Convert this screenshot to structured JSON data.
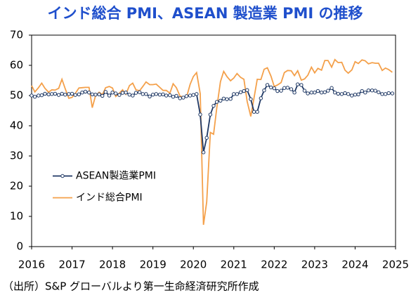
{
  "chart_data": {
    "type": "line",
    "title": "インド総合 PMI、ASEAN 製造業 PMI の推移",
    "source": "（出所）S&P グローバルより第一生命経済研究所作成",
    "xlim": [
      2016,
      2025
    ],
    "xticks": [
      2016,
      2017,
      2018,
      2019,
      2020,
      2021,
      2022,
      2023,
      2024,
      2025
    ],
    "ylim": [
      0,
      70
    ],
    "yticks": [
      0,
      10,
      20,
      30,
      40,
      50,
      60,
      70
    ],
    "legend": "center left",
    "x": [
      2016,
      2016.08,
      2016.17,
      2016.25,
      2016.33,
      2016.42,
      2016.5,
      2016.58,
      2016.67,
      2016.75,
      2016.83,
      2016.92,
      2017,
      2017.08,
      2017.17,
      2017.25,
      2017.33,
      2017.42,
      2017.5,
      2017.58,
      2017.67,
      2017.75,
      2017.83,
      2017.92,
      2018,
      2018.08,
      2018.17,
      2018.25,
      2018.33,
      2018.42,
      2018.5,
      2018.58,
      2018.67,
      2018.75,
      2018.83,
      2018.92,
      2019,
      2019.08,
      2019.17,
      2019.25,
      2019.33,
      2019.42,
      2019.5,
      2019.58,
      2019.67,
      2019.75,
      2019.83,
      2019.92,
      2020,
      2020.08,
      2020.17,
      2020.25,
      2020.33,
      2020.42,
      2020.5,
      2020.58,
      2020.67,
      2020.75,
      2020.83,
      2020.92,
      2021,
      2021.08,
      2021.17,
      2021.25,
      2021.33,
      2021.42,
      2021.5,
      2021.58,
      2021.67,
      2021.75,
      2021.83,
      2021.92,
      2022,
      2022.08,
      2022.17,
      2022.25,
      2022.33,
      2022.42,
      2022.5,
      2022.58,
      2022.67,
      2022.75,
      2022.83,
      2022.92,
      2023,
      2023.08,
      2023.17,
      2023.25,
      2023.33,
      2023.42,
      2023.5,
      2023.58,
      2023.67,
      2023.75,
      2023.83,
      2023.92,
      2024,
      2024.08,
      2024.17,
      2024.25,
      2024.33,
      2024.42,
      2024.5,
      2024.58,
      2024.67,
      2024.75,
      2024.83,
      2024.92
    ],
    "series": [
      {
        "name": "ASEAN製造業PMI",
        "color": "#1f3864",
        "marker": true,
        "values": [
          50.0,
          49.6,
          50.0,
          50.1,
          50.6,
          50.4,
          50.5,
          50.6,
          50.2,
          50.6,
          50.3,
          50.5,
          50.6,
          50.2,
          50.4,
          51.0,
          51.3,
          51.0,
          50.4,
          50.3,
          50.4,
          49.9,
          51.2,
          50.0,
          51.0,
          50.7,
          50.2,
          50.9,
          51.0,
          50.3,
          50.0,
          50.9,
          51.1,
          50.5,
          50.5,
          49.7,
          50.3,
          50.5,
          50.3,
          50.4,
          50.0,
          50.1,
          49.6,
          49.9,
          49.1,
          49.3,
          49.8,
          50.0,
          50.2,
          50.5,
          43.7,
          31.2,
          36.0,
          43.7,
          46.6,
          47.9,
          48.3,
          49.0,
          48.8,
          48.9,
          50.5,
          50.5,
          51.1,
          51.5,
          51.8,
          48.8,
          44.6,
          44.6,
          49.1,
          51.7,
          53.5,
          52.7,
          52.4,
          51.5,
          51.6,
          52.5,
          52.6,
          52.1,
          51.0,
          53.7,
          53.5,
          51.6,
          50.7,
          51.0,
          51.0,
          51.5,
          51.0,
          51.1,
          51.6,
          52.5,
          51.0,
          50.6,
          50.5,
          50.8,
          50.5,
          50.0,
          50.3,
          50.4,
          51.5,
          51.0,
          51.7,
          51.7,
          51.6,
          51.1,
          50.5,
          50.5,
          50.8,
          50.7
        ]
      },
      {
        "name": "インド総合PMI",
        "color": "#f4a04a",
        "marker": false,
        "values": [
          53.3,
          51.2,
          52.6,
          54.1,
          52.4,
          51.1,
          51.9,
          51.8,
          52.4,
          55.4,
          52.3,
          49.1,
          49.4,
          50.7,
          52.5,
          52.6,
          52.7,
          52.7,
          46.0,
          49.9,
          51.1,
          50.3,
          52.6,
          53.0,
          52.5,
          49.7,
          50.8,
          51.9,
          50.4,
          53.3,
          54.1,
          51.9,
          51.6,
          53.0,
          54.5,
          53.6,
          53.6,
          53.8,
          52.7,
          51.7,
          51.7,
          50.8,
          53.9,
          52.6,
          49.8,
          49.6,
          49.4,
          53.7,
          56.3,
          57.6,
          50.6,
          7.2,
          14.8,
          37.8,
          37.2,
          46.0,
          54.6,
          58.0,
          56.3,
          54.9,
          55.8,
          57.3,
          56.0,
          55.4,
          48.1,
          43.1,
          49.2,
          55.4,
          55.3,
          58.7,
          59.2,
          56.4,
          53.0,
          53.5,
          54.3,
          57.6,
          58.3,
          58.2,
          56.6,
          58.2,
          55.1,
          55.5,
          56.7,
          59.4,
          57.5,
          59.0,
          58.4,
          61.6,
          61.6,
          59.4,
          61.9,
          60.9,
          61.0,
          58.4,
          57.4,
          58.5,
          61.2,
          60.6,
          61.8,
          61.5,
          60.5,
          60.9,
          60.7,
          60.7,
          58.3,
          59.1,
          58.6,
          57.7
        ]
      }
    ]
  }
}
